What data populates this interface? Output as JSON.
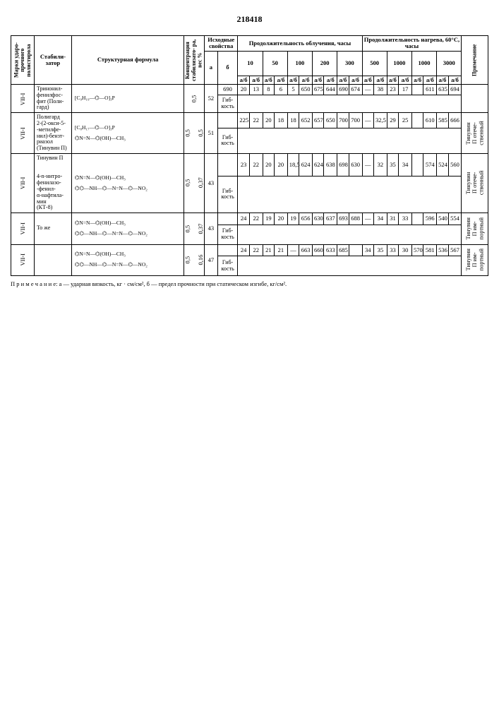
{
  "doc_number": "218418",
  "headers": {
    "marki": "Марки ударо-\nпрочного\nполистирола",
    "stab": "Стабили-\nзатор",
    "struct": "Структурная формула",
    "conc": "Концентрация\nстабилизато-\nра, вес %",
    "ish": "Исходные\nсвойства",
    "obluch": "Продолжительность\nоблучения, часы",
    "nagrev": "Продолжительность\nнагрева, 60°С, часы",
    "prim": "Примечание",
    "a": "а",
    "b": "б",
    "ab": "а/б",
    "h10": "10",
    "h50": "50",
    "h100": "100",
    "h200": "200",
    "h300": "300",
    "n500": "500",
    "n1000": "1000",
    "n2000": "1000",
    "n3000": "3000"
  },
  "rows": [
    {
      "marki": "VII-I",
      "stab": "Тринонил-\nфенилфос-\nфит (Поли-\nгард)",
      "struct": "[C₉H₁₉—⌬—O]₃P",
      "conc": "0,5",
      "a": "52",
      "b_val": "690",
      "b_lbl": "Гиб-\nкость",
      "o10a": "20",
      "o10b": "650",
      "o50a": "13",
      "o50b": "675",
      "o100a": "8",
      "o100b": "644",
      "o200a": "6",
      "o200b": "690",
      "o300a": "5",
      "o300b": "674",
      "n500a": "—",
      "n500b": "",
      "n1000a": "38",
      "n1000b": "611",
      "n2000a": "23",
      "n2000b": "635",
      "n3000a": "17",
      "n3000b": "694",
      "prim": ""
    },
    {
      "marki": "VII-I",
      "stab": "Полигард\n2-(2-окси-5-\n-метилфе-\nнил)-бензт-\nриазол\n(Тинувин П)",
      "struct": "[C₈H₁₇—⌬—O]₃P\n\n⌬N=N—⌬(OH)—CH₃",
      "conc": "0,5\n\n0,5",
      "a": "51",
      "b_val": "",
      "b_lbl": "Гиб-\nкость",
      "o10a": "225",
      "o10b": "652",
      "o50a": "22",
      "o50b": "657",
      "o100a": "20",
      "o100b": "650",
      "o200a": "18",
      "o200b": "700",
      "o300a": "18",
      "o300b": "700",
      "n500a": "—",
      "n500b": "",
      "n1000a": "32,5",
      "n1000b": "610",
      "n2000a": "29",
      "n2000b": "585",
      "n3000a": "25",
      "n3000b": "666",
      "prim": "Тинувин\nП отече-\nственный"
    },
    {
      "marki": "VII-I",
      "stab": "Тинувин П\n\n\n4-n-нитро-\nфенилазо-\n-фенил-\nα-нафтила-\nмин\n(КТ-8)",
      "struct": "⌬N=N—⌬(OH)—CH₃\n\n⌬⌬—NH—⌬—N=N—⌬—NO₂",
      "conc": "0,5\n\n0,37",
      "a": "43",
      "b_val": "",
      "b_lbl": "Гиб-\nкость",
      "o10a": "23",
      "o10b": "624",
      "o50a": "22",
      "o50b": "624",
      "o100a": "20",
      "o100b": "638",
      "o200a": "20",
      "o200b": "698",
      "o300a": "18,5",
      "o300b": "630",
      "n500a": "—",
      "n500b": "",
      "n1000a": "32",
      "n1000b": "574",
      "n2000a": "35",
      "n2000b": "524",
      "n3000a": "34",
      "n3000b": "560",
      "prim": "Тинувин\nП отече-\nственный"
    },
    {
      "marki": "VII-I",
      "stab": "То же",
      "struct": "⌬N=N—⌬(OH)—CH₃\n\n⌬⌬—NH—⌬—N=N—⌬—NO₂",
      "conc": "0,5\n\n0,37",
      "a": "43",
      "b_val": "",
      "b_lbl": "Гиб-\nкость",
      "o10a": "24",
      "o10b": "656",
      "o50a": "22",
      "o50b": "630",
      "o100a": "19",
      "o100b": "637",
      "o200a": "20",
      "o200b": "693",
      "o300a": "19",
      "o300b": "688",
      "n500a": "—",
      "n500b": "",
      "n1000a": "34",
      "n1000b": "596",
      "n2000a": "31",
      "n2000b": "540",
      "n3000a": "33",
      "n3000b": "554",
      "prim": "Тинувин\nП им-\nпортный"
    },
    {
      "marki": "VII-I",
      "stab": "",
      "struct": "⌬N=N—⌬(OH)—CH₃\n\n⌬⌬—NH—⌬—N=N—⌬—NO₂",
      "conc": "0,5\n\n0,16",
      "a": "47",
      "b_val": "",
      "b_lbl": "Гиб-\nкость",
      "o10a": "24",
      "o10b": "663",
      "o50a": "22",
      "o50b": "660",
      "o100a": "21",
      "o100b": "633",
      "o200a": "21",
      "o200b": "685",
      "o300a": "—",
      "o300b": "",
      "n500a": "34",
      "n500b": "570",
      "n1000a": "35",
      "n1000b": "581",
      "n2000a": "33",
      "n2000b": "536",
      "n3000a": "30",
      "n3000b": "567",
      "prim": "Тинувин\nП им-\nпортный"
    }
  ],
  "footnote": "П р и м е ч а н и е: а — ударная вязкость, кг · см/см², б — предел прочности при статическом изгибе, кг/см²."
}
